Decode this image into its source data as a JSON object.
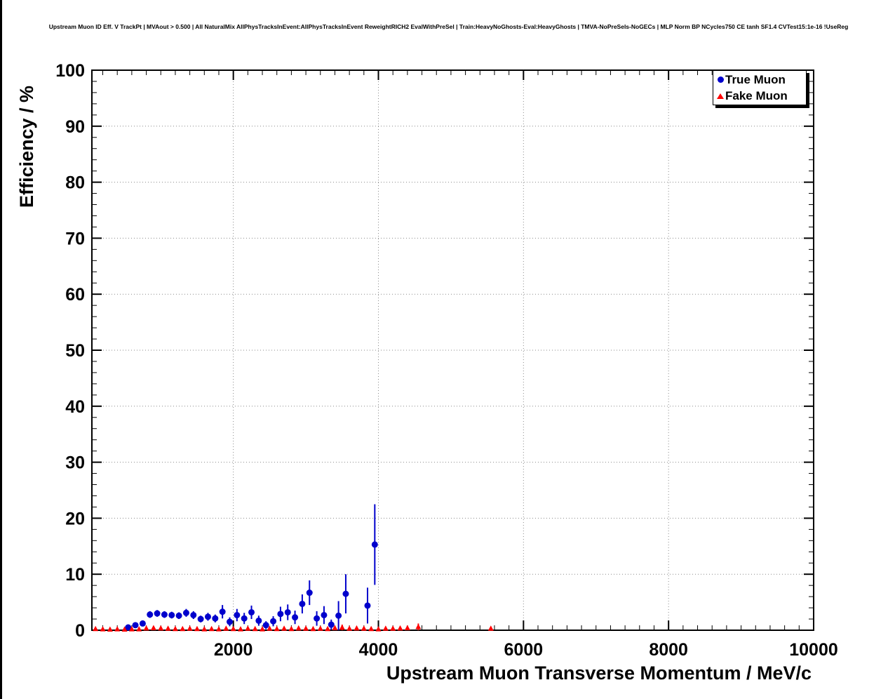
{
  "chart_data": {
    "type": "scatter",
    "title": "Upstream Muon ID Eff. V TrackPt | MVAout > 0.500 | All NaturalMix AllPhysTracksInEvent:AllPhysTracksInEvent ReweightRICH2 EvalWithPreSel | Train:HeavyNoGhosts-Eval:HeavyGhosts | TMVA-NoPreSels-NoGECs | MLP Norm BP NCycles750 CE tanh SF1.4 CVTest15:1e-16 !UseReg",
    "xlabel": "Upstream Muon Transverse Momentum / MeV/c",
    "ylabel": "Efficiency / %",
    "xlim": [
      50,
      10000
    ],
    "ylim": [
      0,
      100
    ],
    "xticks": [
      2000,
      4000,
      6000,
      8000,
      10000
    ],
    "yticks": [
      0,
      10,
      20,
      30,
      40,
      50,
      60,
      70,
      80,
      90,
      100
    ],
    "x_minor_step": 200,
    "y_minor_step": 2,
    "grid": true,
    "grid_color": "#8a8a8a",
    "frame_color": "#000000",
    "background": "#ffffff",
    "points_format": [
      "x",
      "y",
      "yerr"
    ],
    "legend": {
      "position": "top-right",
      "entries": [
        {
          "label": "True Muon",
          "marker": "circle",
          "color": "#0000cc"
        },
        {
          "label": "Fake Muon",
          "marker": "triangle",
          "color": "#ff0000"
        }
      ]
    },
    "series": [
      {
        "name": "True Muon",
        "marker": "circle",
        "color": "#0000cc",
        "points": [
          [
            550,
            0.5,
            0.3
          ],
          [
            650,
            0.9,
            0.4
          ],
          [
            750,
            1.2,
            0.5
          ],
          [
            850,
            2.8,
            0.6
          ],
          [
            950,
            3.0,
            0.6
          ],
          [
            1050,
            2.8,
            0.6
          ],
          [
            1150,
            2.7,
            0.6
          ],
          [
            1250,
            2.6,
            0.6
          ],
          [
            1350,
            3.1,
            0.7
          ],
          [
            1450,
            2.7,
            0.7
          ],
          [
            1550,
            2.0,
            0.6
          ],
          [
            1650,
            2.4,
            0.7
          ],
          [
            1750,
            2.1,
            0.7
          ],
          [
            1850,
            3.3,
            1.2
          ],
          [
            1950,
            1.5,
            0.8
          ],
          [
            2050,
            2.7,
            1.1
          ],
          [
            2150,
            2.1,
            1.0
          ],
          [
            2250,
            3.2,
            1.2
          ],
          [
            2350,
            1.7,
            0.9
          ],
          [
            2450,
            0.9,
            0.7
          ],
          [
            2550,
            1.6,
            0.9
          ],
          [
            2650,
            2.9,
            1.3
          ],
          [
            2750,
            3.2,
            1.4
          ],
          [
            2850,
            2.3,
            1.2
          ],
          [
            2950,
            4.7,
            1.7
          ],
          [
            3050,
            6.7,
            2.2
          ],
          [
            3150,
            2.1,
            1.3
          ],
          [
            3250,
            2.7,
            1.6
          ],
          [
            3350,
            1.0,
            0.9
          ],
          [
            3450,
            2.6,
            2.6
          ],
          [
            3550,
            6.5,
            3.5
          ],
          [
            3850,
            4.4,
            3.2
          ],
          [
            3950,
            15.3,
            7.2
          ]
        ]
      },
      {
        "name": "Fake Muon",
        "marker": "triangle",
        "color": "#ff0000",
        "points": [
          [
            100,
            0.25,
            0.15
          ],
          [
            200,
            0.2,
            0.1
          ],
          [
            300,
            0.15,
            0.1
          ],
          [
            400,
            0.2,
            0.1
          ],
          [
            500,
            0.15,
            0.1
          ],
          [
            600,
            0.2,
            0.1
          ],
          [
            700,
            0.2,
            0.1
          ],
          [
            800,
            0.35,
            0.15
          ],
          [
            900,
            0.4,
            0.15
          ],
          [
            1000,
            0.35,
            0.15
          ],
          [
            1100,
            0.3,
            0.15
          ],
          [
            1200,
            0.25,
            0.1
          ],
          [
            1300,
            0.25,
            0.1
          ],
          [
            1400,
            0.3,
            0.15
          ],
          [
            1500,
            0.25,
            0.1
          ],
          [
            1600,
            0.2,
            0.1
          ],
          [
            1700,
            0.25,
            0.1
          ],
          [
            1800,
            0.2,
            0.1
          ],
          [
            1900,
            0.3,
            0.15
          ],
          [
            2000,
            0.25,
            0.15
          ],
          [
            2100,
            0.2,
            0.1
          ],
          [
            2200,
            0.3,
            0.15
          ],
          [
            2300,
            0.25,
            0.15
          ],
          [
            2400,
            0.2,
            0.1
          ],
          [
            2500,
            0.3,
            0.15
          ],
          [
            2600,
            0.25,
            0.15
          ],
          [
            2700,
            0.3,
            0.2
          ],
          [
            2800,
            0.25,
            0.15
          ],
          [
            2900,
            0.35,
            0.2
          ],
          [
            3000,
            0.3,
            0.2
          ],
          [
            3100,
            0.25,
            0.15
          ],
          [
            3200,
            0.3,
            0.2
          ],
          [
            3300,
            0.25,
            0.2
          ],
          [
            3400,
            0.4,
            0.3
          ],
          [
            3500,
            0.5,
            0.5
          ],
          [
            3600,
            0.3,
            0.25
          ],
          [
            3700,
            0.35,
            0.3
          ],
          [
            3800,
            0.3,
            0.25
          ],
          [
            3900,
            0.25,
            0.2
          ],
          [
            4000,
            0.2,
            0.2
          ],
          [
            4100,
            0.3,
            0.3
          ],
          [
            4200,
            0.3,
            0.3
          ],
          [
            4300,
            0.35,
            0.3
          ],
          [
            4400,
            0.4,
            0.4
          ],
          [
            4550,
            0.6,
            0.6
          ],
          [
            5550,
            0.3,
            0.3
          ]
        ]
      }
    ]
  }
}
